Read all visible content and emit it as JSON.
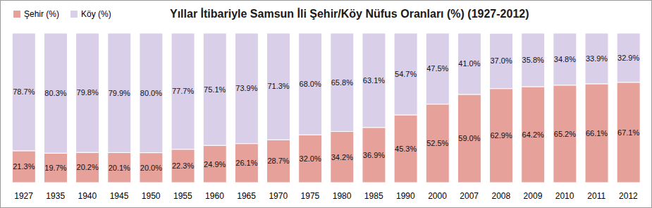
{
  "chart_data": {
    "type": "bar",
    "title": "Yıllar İtibariyle Samsun İli Şehir/Köy Nüfus Oranları (%) (1927-2012)",
    "categories": [
      "1927",
      "1935",
      "1940",
      "1945",
      "1950",
      "1955",
      "1960",
      "1965",
      "1970",
      "1975",
      "1980",
      "1985",
      "1990",
      "2000",
      "2007",
      "2008",
      "2009",
      "2010",
      "2011",
      "2012"
    ],
    "series": [
      {
        "name": "Şehir (%)",
        "color": "#e6a19b",
        "values": [
          21.3,
          19.7,
          20.2,
          20.1,
          20.0,
          22.3,
          24.9,
          26.1,
          28.7,
          32.0,
          34.2,
          36.9,
          45.3,
          52.5,
          59.0,
          62.9,
          64.2,
          65.2,
          66.1,
          67.1
        ],
        "value_labels": [
          "21.3%",
          "19.7%",
          "20.2%",
          "20.1%",
          "20.0%",
          "22.3%",
          "24.9%",
          "26.1%",
          "28.7%",
          "32.0%",
          "34.2%",
          "36.9%",
          "45.3%",
          "52.5%",
          "59.0%",
          "62.9%",
          "64.2%",
          "65.2%",
          "66.1%",
          "67.1%"
        ]
      },
      {
        "name": "Köy (%)",
        "color": "#d9cfe8",
        "values": [
          78.7,
          80.3,
          79.8,
          79.9,
          80.0,
          77.7,
          75.1,
          73.9,
          71.3,
          68.0,
          65.8,
          63.1,
          54.7,
          47.5,
          41.0,
          37.0,
          35.8,
          34.8,
          33.9,
          32.9
        ],
        "value_labels": [
          "78.7%",
          "80.3%",
          "79.8%",
          "79.9%",
          "80.0%",
          "77.7%",
          "75.1%",
          "73.9%",
          "71.3%",
          "68.0%",
          "65.8%",
          "63.1%",
          "54.7%",
          "47.5%",
          "41.0%",
          "37.0%",
          "35.8%",
          "34.8%",
          "33.9%",
          "32.9%"
        ]
      }
    ],
    "stacked": true,
    "data_labels": true,
    "ylim": [
      0,
      100
    ],
    "tick_labels": "x",
    "legend": "top-left"
  }
}
